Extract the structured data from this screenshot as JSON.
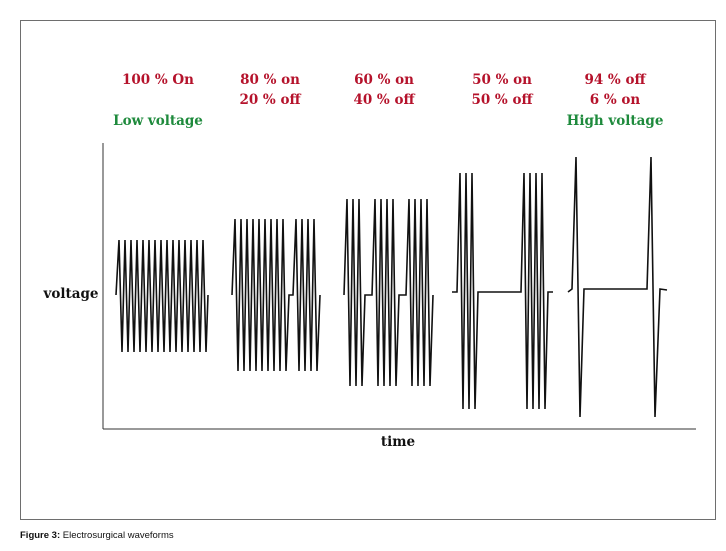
{
  "panels": [
    {
      "line1": "100 % On",
      "line2": "",
      "tag": "Low voltage",
      "duty": 1.0,
      "amplitude": 0.4
    },
    {
      "line1": "80 % on",
      "line2": "20 % off",
      "tag": "",
      "duty": 0.8,
      "amplitude": 0.55
    },
    {
      "line1": "60 % on",
      "line2": "40 % off",
      "tag": "",
      "duty": 0.6,
      "amplitude": 0.68
    },
    {
      "line1": "50 % on",
      "line2": "50 % off",
      "tag": "",
      "duty": 0.5,
      "amplitude": 0.85
    },
    {
      "line1": "94 % off",
      "line2": "6 % on",
      "tag": "High voltage",
      "duty": 0.06,
      "amplitude": 0.95
    }
  ],
  "axes": {
    "y_label": "voltage",
    "x_label": "time"
  },
  "caption": {
    "label": "Figure 3:",
    "text": "Electrosurgical waveforms"
  },
  "colors": {
    "percent_text": "#b5122b",
    "voltage_tag": "#1e8a3c",
    "waveform": "#111111"
  }
}
